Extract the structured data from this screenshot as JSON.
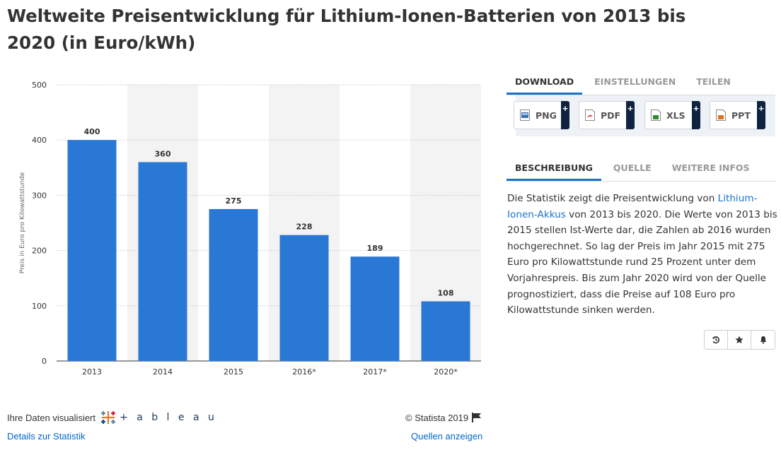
{
  "title": "Weltweite Preisentwicklung für Lithium-Ionen-Batterien von 2013 bis 2020 (in Euro/kWh)",
  "chart_data": {
    "type": "bar",
    "categories": [
      "2013",
      "2014",
      "2015",
      "2016*",
      "2017*",
      "2020*"
    ],
    "values": [
      400,
      360,
      275,
      228,
      189,
      108
    ],
    "data_labels": [
      "400",
      "360",
      "275",
      "228",
      "189",
      "108"
    ],
    "ylabel": "Preis in Euro pro Kilowattstunde",
    "xlabel": "",
    "ylim": [
      0,
      500
    ],
    "yticks": [
      0,
      100,
      200,
      300,
      400,
      500
    ],
    "ytick_labels": [
      "0",
      "100",
      "200",
      "300",
      "400",
      "500"
    ],
    "bar_color": "#2a78d6",
    "alternate_band_color": "#f3f3f3",
    "grid": true
  },
  "footer": {
    "visualized_by": "Ihre Daten visualisiert",
    "tableau_word": "+ a b l e a u",
    "details_link": "Details zur Statistik",
    "copyright": "© Statista 2019",
    "sources_link": "Quellen anzeigen"
  },
  "top_tabs": [
    "DOWNLOAD",
    "EINSTELLUNGEN",
    "TEILEN"
  ],
  "downloads": [
    {
      "label": "PNG",
      "icon": "png-file-icon",
      "color": "#3d6fb0"
    },
    {
      "label": "PDF",
      "icon": "pdf-file-icon",
      "color": "#cc2222"
    },
    {
      "label": "XLS",
      "icon": "xls-file-icon",
      "color": "#2e8b2e"
    },
    {
      "label": "PPT",
      "icon": "ppt-file-icon",
      "color": "#e07020"
    }
  ],
  "download_plus": "+",
  "bottom_tabs": [
    "BESCHREIBUNG",
    "QUELLE",
    "WEITERE INFOS"
  ],
  "description": {
    "before": "Die Statistik zeigt die Preisentwicklung von ",
    "link": "Lithium-Ionen-Akkus",
    "after": " von 2013 bis 2020. Die Werte von 2013 bis 2015 stellen Ist-Werte dar, die Zahlen ab 2016 wurden hochgerechnet. So lag der Preis im Jahr 2015 mit 275 Euro pro Kilowattstunde rund 25 Prozent unter dem Vorjahrespreis. Bis zum Jahr 2020 wird von der Quelle prognostiziert, dass die Preise auf 108 Euro pro Kilowattstunde sinken werden."
  },
  "action_icons": [
    "history-icon",
    "star-icon",
    "bell-icon"
  ]
}
